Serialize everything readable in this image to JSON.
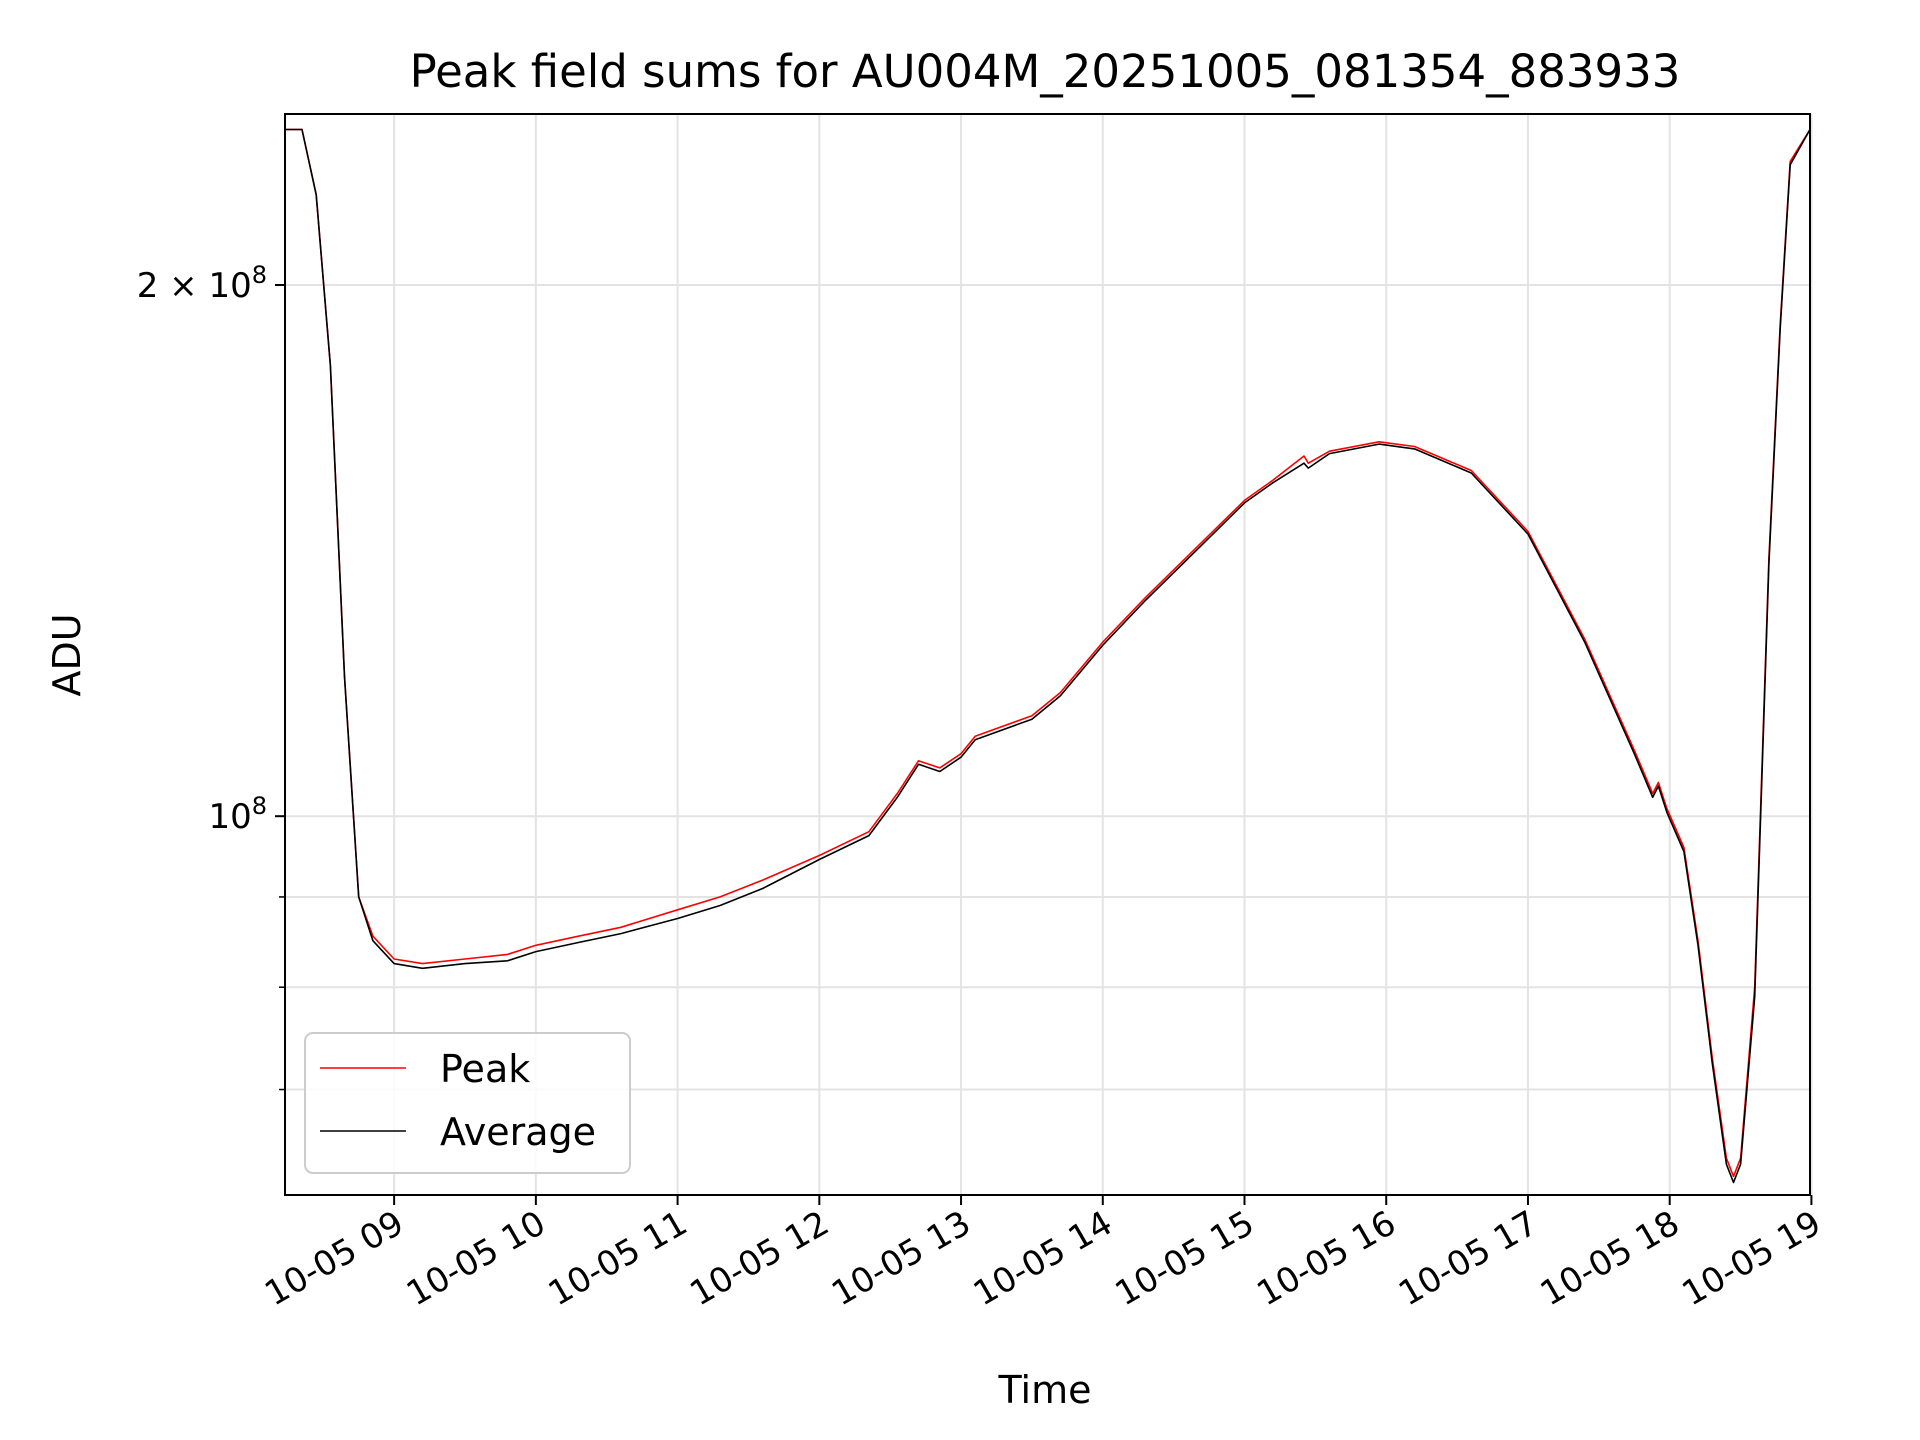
{
  "chart_data": {
    "type": "line",
    "title": "Peak field sums for AU004M_20251005_081354_883933",
    "xlabel": "Time",
    "ylabel": "ADU",
    "yscale": "log",
    "ylim": [
      61000000,
      250000000
    ],
    "xlim": [
      8.23,
      18.99
    ],
    "x_ticks": [
      {
        "value": 9,
        "label": "10-05 09"
      },
      {
        "value": 10,
        "label": "10-05 10"
      },
      {
        "value": 11,
        "label": "10-05 11"
      },
      {
        "value": 12,
        "label": "10-05 12"
      },
      {
        "value": 13,
        "label": "10-05 13"
      },
      {
        "value": 14,
        "label": "10-05 14"
      },
      {
        "value": 15,
        "label": "10-05 15"
      },
      {
        "value": 16,
        "label": "10-05 16"
      },
      {
        "value": 17,
        "label": "10-05 17"
      },
      {
        "value": 18,
        "label": "10-05 18"
      },
      {
        "value": 19,
        "label": "10-05 19"
      }
    ],
    "y_major_ticks": [
      {
        "value": 100000000,
        "base": "10",
        "exp": "8",
        "prefix": ""
      },
      {
        "value": 200000000,
        "base": "10",
        "exp": "8",
        "prefix": "2 × "
      }
    ],
    "y_minor_ticks": [
      70000000,
      80000000,
      90000000
    ],
    "legend": {
      "position": "lower-left",
      "entries": [
        "Peak",
        "Average"
      ]
    },
    "series": [
      {
        "name": "Peak",
        "color": "#ff0000",
        "points": [
          [
            8.23,
            245000000
          ],
          [
            8.35,
            245000000
          ],
          [
            8.45,
            225000000
          ],
          [
            8.55,
            180000000
          ],
          [
            8.65,
            120000000
          ],
          [
            8.75,
            90000000
          ],
          [
            8.85,
            85500000
          ],
          [
            9.0,
            83000000
          ],
          [
            9.2,
            82500000
          ],
          [
            9.5,
            83000000
          ],
          [
            9.8,
            83500000
          ],
          [
            10.0,
            84500000
          ],
          [
            10.3,
            85500000
          ],
          [
            10.6,
            86500000
          ],
          [
            11.0,
            88500000
          ],
          [
            11.3,
            90000000
          ],
          [
            11.6,
            92000000
          ],
          [
            12.0,
            95000000
          ],
          [
            12.35,
            98000000
          ],
          [
            12.55,
            103000000
          ],
          [
            12.7,
            107500000
          ],
          [
            12.85,
            106500000
          ],
          [
            13.0,
            108500000
          ],
          [
            13.1,
            111000000
          ],
          [
            13.5,
            114000000
          ],
          [
            13.7,
            117500000
          ],
          [
            14.0,
            125500000
          ],
          [
            14.3,
            133000000
          ],
          [
            14.7,
            143000000
          ],
          [
            15.0,
            151000000
          ],
          [
            15.2,
            155000000
          ],
          [
            15.42,
            160000000
          ],
          [
            15.45,
            158500000
          ],
          [
            15.6,
            161000000
          ],
          [
            15.95,
            163000000
          ],
          [
            16.2,
            162000000
          ],
          [
            16.6,
            157000000
          ],
          [
            17.0,
            145000000
          ],
          [
            17.4,
            126000000
          ],
          [
            17.75,
            109000000
          ],
          [
            17.88,
            103000000
          ],
          [
            17.92,
            104500000
          ],
          [
            17.98,
            101000000
          ],
          [
            18.1,
            96000000
          ],
          [
            18.2,
            85000000
          ],
          [
            18.3,
            73000000
          ],
          [
            18.4,
            64000000
          ],
          [
            18.45,
            62500000
          ],
          [
            18.5,
            64000000
          ],
          [
            18.6,
            80000000
          ],
          [
            18.7,
            140000000
          ],
          [
            18.78,
            190000000
          ],
          [
            18.85,
            235000000
          ],
          [
            18.99,
            245000000
          ]
        ]
      },
      {
        "name": "Average",
        "color": "#000000",
        "points": [
          [
            8.23,
            245000000
          ],
          [
            8.35,
            245000000
          ],
          [
            8.45,
            225000000
          ],
          [
            8.55,
            180000000
          ],
          [
            8.65,
            120000000
          ],
          [
            8.75,
            90000000
          ],
          [
            8.85,
            85000000
          ],
          [
            9.0,
            82500000
          ],
          [
            9.2,
            82000000
          ],
          [
            9.5,
            82500000
          ],
          [
            9.8,
            82800000
          ],
          [
            10.0,
            83800000
          ],
          [
            10.3,
            84800000
          ],
          [
            10.6,
            85800000
          ],
          [
            11.0,
            87500000
          ],
          [
            11.3,
            89000000
          ],
          [
            11.6,
            91000000
          ],
          [
            12.0,
            94500000
          ],
          [
            12.35,
            97500000
          ],
          [
            12.55,
            102500000
          ],
          [
            12.7,
            107000000
          ],
          [
            12.85,
            106000000
          ],
          [
            13.0,
            108000000
          ],
          [
            13.1,
            110500000
          ],
          [
            13.5,
            113500000
          ],
          [
            13.7,
            117000000
          ],
          [
            14.0,
            125000000
          ],
          [
            14.3,
            132500000
          ],
          [
            14.7,
            142500000
          ],
          [
            15.0,
            150500000
          ],
          [
            15.2,
            154500000
          ],
          [
            15.42,
            158500000
          ],
          [
            15.45,
            157500000
          ],
          [
            15.6,
            160500000
          ],
          [
            15.95,
            162500000
          ],
          [
            16.2,
            161500000
          ],
          [
            16.6,
            156500000
          ],
          [
            17.0,
            144500000
          ],
          [
            17.4,
            125500000
          ],
          [
            17.75,
            108500000
          ],
          [
            17.88,
            102500000
          ],
          [
            17.92,
            104000000
          ],
          [
            17.98,
            100500000
          ],
          [
            18.1,
            95500000
          ],
          [
            18.2,
            84500000
          ],
          [
            18.3,
            72500000
          ],
          [
            18.4,
            63500000
          ],
          [
            18.45,
            62000000
          ],
          [
            18.5,
            63500000
          ],
          [
            18.6,
            79000000
          ],
          [
            18.7,
            139000000
          ],
          [
            18.78,
            189000000
          ],
          [
            18.85,
            234000000
          ],
          [
            18.99,
            245000000
          ]
        ]
      }
    ]
  }
}
